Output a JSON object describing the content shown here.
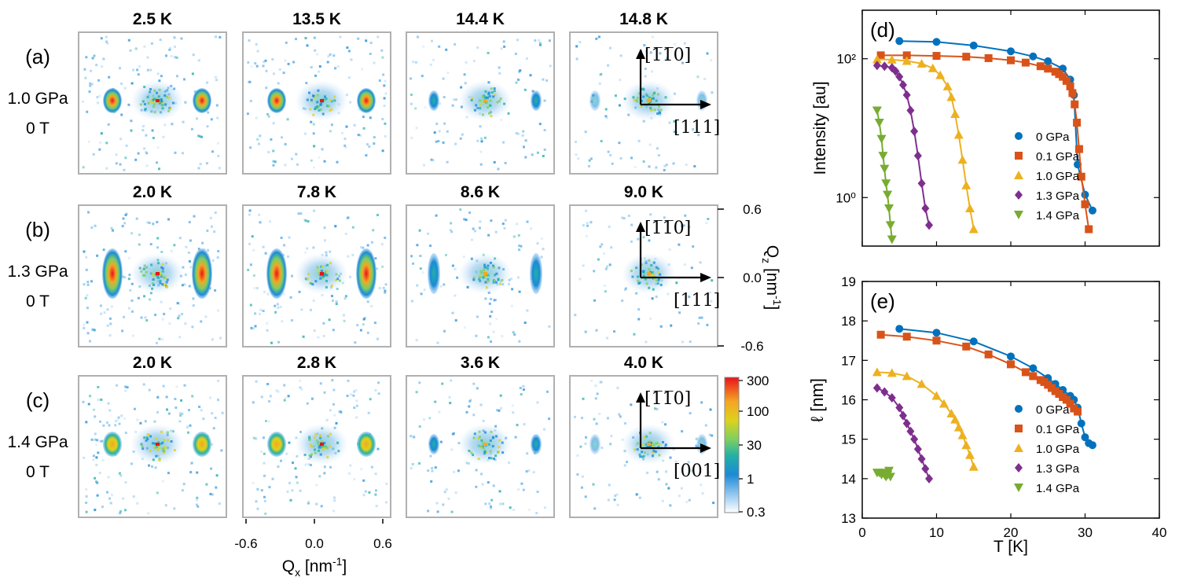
{
  "figure": {
    "rows": [
      {
        "label": "(a)",
        "pressure": "1.0 GPa",
        "field": "0 T",
        "temperatures": [
          "2.5 K",
          "13.5 K",
          "14.4 K",
          "14.8 K"
        ],
        "direction_vertical": "[1̅1̅0]",
        "direction_horizontal": "[111]"
      },
      {
        "label": "(b)",
        "pressure": "1.3 GPa",
        "field": "0 T",
        "temperatures": [
          "2.0 K",
          "7.8 K",
          "8.6 K",
          "9.0 K"
        ],
        "direction_vertical": "[1̅1̅0]",
        "direction_horizontal": "[111]"
      },
      {
        "label": "(c)",
        "pressure": "1.4 GPa",
        "field": "0 T",
        "temperatures": [
          "2.0 K",
          "2.8 K",
          "3.6 K",
          "4.0 K"
        ],
        "direction_vertical": "[1̅1̅0]",
        "direction_horizontal": "[001]"
      }
    ],
    "qx_axis": {
      "label_main": "Q",
      "label_sub": "x",
      "label_unit": " [nm",
      "label_sup": "-1",
      "label_close": "]",
      "ticks": [
        "-0.6",
        "0.0",
        "0.6"
      ]
    },
    "qz_axis": {
      "label_main": "Q",
      "label_sub": "z",
      "label_unit": " [nm",
      "label_sup": "-1",
      "label_close": "]",
      "ticks": [
        "0.6",
        "0.0",
        "-0.6"
      ]
    },
    "colorbar": {
      "ticks": [
        "300",
        "100",
        "30",
        "1",
        "0.3"
      ],
      "colors": [
        "#e8141b",
        "#f5a623",
        "#ddd21c",
        "#7ccf63",
        "#22b0a6",
        "#1c8ad6",
        "#8ec5f0",
        "#ffffff"
      ]
    }
  },
  "chart_data": [
    {
      "type": "line",
      "panel": "(d)",
      "xlabel": "",
      "ylabel": "Intensity [au]",
      "yscale": "log",
      "xlim": [
        0,
        40
      ],
      "ylim": [
        0.2,
        500
      ],
      "yticks": [
        "10⁰",
        "10²"
      ],
      "series": [
        {
          "name": "0 GPa",
          "color": "#0072bd",
          "marker": "circle",
          "x": [
            5,
            10,
            15,
            20,
            23,
            25,
            27,
            28,
            28.5,
            29,
            30,
            31
          ],
          "y": [
            180,
            175,
            155,
            128,
            108,
            92,
            72,
            50,
            30,
            3,
            1.1,
            0.65
          ]
        },
        {
          "name": "0.1 GPa",
          "color": "#d95319",
          "marker": "square",
          "x": [
            2.5,
            6,
            10,
            14,
            17,
            20,
            22,
            24,
            25,
            26,
            26.5,
            27,
            27.5,
            28,
            28.3,
            28.6,
            28.9,
            29.2,
            29.5,
            30,
            30.5
          ],
          "y": [
            112,
            112,
            110,
            107,
            102,
            95,
            88,
            78,
            72,
            65,
            60,
            55,
            48,
            40,
            32,
            22,
            12,
            5,
            2,
            0.8,
            0.35
          ]
        },
        {
          "name": "1.0 GPa",
          "color": "#edb120",
          "marker": "triangle-up",
          "x": [
            2,
            4,
            6,
            8,
            9.5,
            10.5,
            11.5,
            12,
            12.5,
            13,
            13.5,
            14,
            14.5,
            15
          ],
          "y": [
            98,
            97,
            93,
            85,
            73,
            58,
            40,
            28,
            16,
            8,
            3.5,
            1.5,
            0.7,
            0.35
          ]
        },
        {
          "name": "1.3 GPa",
          "color": "#7e2f8e",
          "marker": "diamond",
          "x": [
            2,
            3,
            4,
            4.5,
            5,
            5.5,
            6,
            6.5,
            7,
            7.5,
            8,
            8.5,
            9
          ],
          "y": [
            80,
            78,
            74,
            66,
            55,
            42,
            30,
            18,
            9,
            4,
            1.6,
            0.7,
            0.4
          ]
        },
        {
          "name": "1.4 GPa",
          "color": "#77ac30",
          "marker": "triangle-down",
          "x": [
            2,
            2.3,
            2.6,
            2.8,
            3,
            3.2,
            3.4,
            3.6,
            3.8,
            4
          ],
          "y": [
            18,
            12,
            7,
            4,
            2.6,
            1.6,
            1.1,
            0.7,
            0.4,
            0.25
          ]
        }
      ]
    },
    {
      "type": "line",
      "panel": "(e)",
      "xlabel": "T [K]",
      "ylabel": "ℓ [nm]",
      "xlim": [
        0,
        40
      ],
      "ylim": [
        13,
        19
      ],
      "xticks": [
        "0",
        "10",
        "20",
        "30",
        "40"
      ],
      "yticks": [
        "13",
        "14",
        "15",
        "16",
        "17",
        "18",
        "19"
      ],
      "series": [
        {
          "name": "0 GPa",
          "color": "#0072bd",
          "marker": "circle",
          "x": [
            5,
            10,
            15,
            20,
            23,
            25,
            26,
            27,
            28,
            28.5,
            29,
            29.5,
            30,
            30.5,
            31
          ],
          "y": [
            17.8,
            17.7,
            17.48,
            17.1,
            16.8,
            16.55,
            16.4,
            16.25,
            16.1,
            16.0,
            15.8,
            15.4,
            15.05,
            14.9,
            14.85
          ]
        },
        {
          "name": "0.1 GPa",
          "color": "#d95319",
          "marker": "square",
          "x": [
            2.5,
            6,
            10,
            14,
            17,
            20,
            22,
            23,
            24,
            24.5,
            25,
            25.5,
            26,
            26.5,
            27,
            27.5,
            28,
            28.5,
            29
          ],
          "y": [
            17.65,
            17.6,
            17.5,
            17.35,
            17.15,
            16.9,
            16.7,
            16.6,
            16.5,
            16.45,
            16.38,
            16.3,
            16.22,
            16.15,
            16.07,
            16.0,
            15.9,
            15.78,
            15.7
          ]
        },
        {
          "name": "1.0 GPa",
          "color": "#edb120",
          "marker": "triangle-up",
          "x": [
            2,
            4,
            6,
            8,
            10,
            11,
            12,
            12.5,
            13,
            13.5,
            14,
            14.5,
            15
          ],
          "y": [
            16.7,
            16.68,
            16.6,
            16.4,
            16.1,
            15.9,
            15.65,
            15.5,
            15.3,
            15.1,
            14.85,
            14.6,
            14.3
          ]
        },
        {
          "name": "1.3 GPa",
          "color": "#7e2f8e",
          "marker": "diamond",
          "x": [
            2,
            3,
            4,
            5,
            5.5,
            6,
            6.5,
            7,
            7.5,
            8,
            8.5,
            9
          ],
          "y": [
            16.3,
            16.2,
            16.05,
            15.8,
            15.6,
            15.4,
            15.2,
            15.0,
            14.75,
            14.5,
            14.25,
            14.0
          ]
        },
        {
          "name": "1.4 GPa",
          "color": "#77ac30",
          "marker": "triangle-down",
          "x": [
            2,
            2.3,
            2.6,
            2.8,
            3,
            3.2,
            3.4,
            3.6,
            3.8
          ],
          "y": [
            14.15,
            14.15,
            14.1,
            14.15,
            14.1,
            14.05,
            14.1,
            14.2,
            14.05
          ]
        }
      ]
    }
  ]
}
